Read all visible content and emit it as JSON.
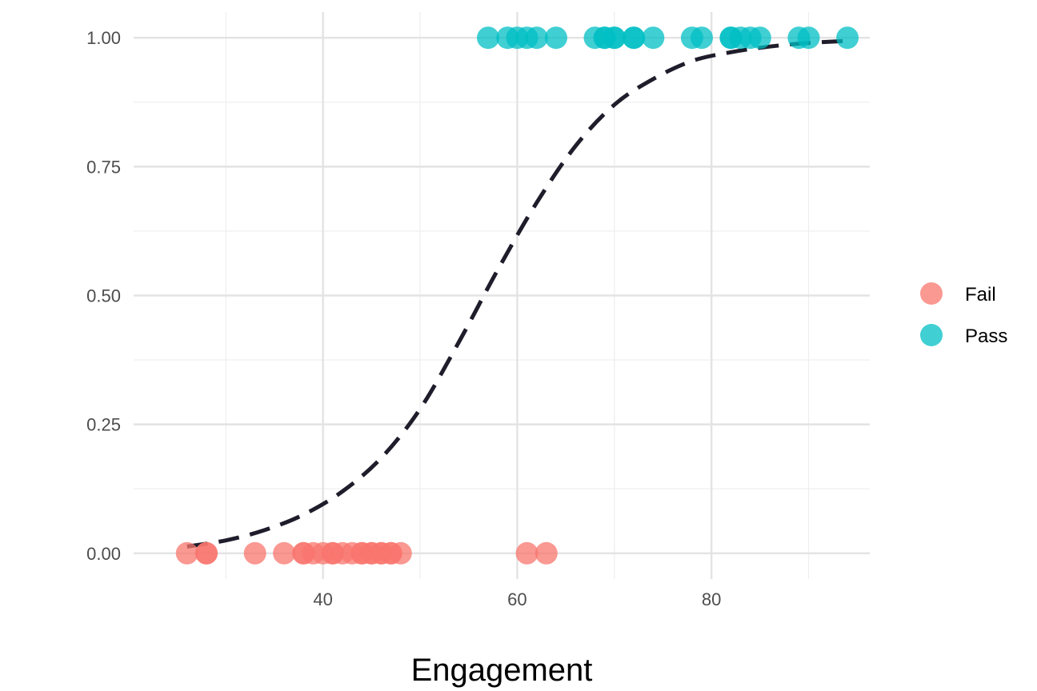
{
  "chart_data": {
    "type": "scatter",
    "title": "",
    "xlabel": "Engagement",
    "ylabel": "",
    "xlim": [
      20.5,
      96.3
    ],
    "ylim": [
      -0.05,
      1.05
    ],
    "x_ticks": [
      40,
      60,
      80
    ],
    "x_tick_labels": [
      "40",
      "60",
      "80"
    ],
    "y_ticks": [
      0,
      0.25,
      0.5,
      0.75,
      1
    ],
    "y_tick_labels": [
      "0.00",
      "0.25",
      "0.50",
      "0.75",
      "1.00"
    ],
    "grid": true,
    "legend_position": "right",
    "series": [
      {
        "name": "Fail",
        "color": "#F8766D",
        "points": [
          {
            "x": 26,
            "y": 0
          },
          {
            "x": 28,
            "y": 0
          },
          {
            "x": 28,
            "y": 0
          },
          {
            "x": 33,
            "y": 0
          },
          {
            "x": 36,
            "y": 0
          },
          {
            "x": 38,
            "y": 0
          },
          {
            "x": 38,
            "y": 0
          },
          {
            "x": 39,
            "y": 0
          },
          {
            "x": 40,
            "y": 0
          },
          {
            "x": 41,
            "y": 0
          },
          {
            "x": 41,
            "y": 0
          },
          {
            "x": 42,
            "y": 0
          },
          {
            "x": 43,
            "y": 0
          },
          {
            "x": 44,
            "y": 0
          },
          {
            "x": 44,
            "y": 0
          },
          {
            "x": 45,
            "y": 0
          },
          {
            "x": 45,
            "y": 0
          },
          {
            "x": 46,
            "y": 0
          },
          {
            "x": 46,
            "y": 0
          },
          {
            "x": 47,
            "y": 0
          },
          {
            "x": 47,
            "y": 0
          },
          {
            "x": 48,
            "y": 0
          },
          {
            "x": 61,
            "y": 0
          },
          {
            "x": 63,
            "y": 0
          }
        ]
      },
      {
        "name": "Pass",
        "color": "#00BFC4",
        "points": [
          {
            "x": 57,
            "y": 1
          },
          {
            "x": 59,
            "y": 1
          },
          {
            "x": 60,
            "y": 1
          },
          {
            "x": 61,
            "y": 1
          },
          {
            "x": 62,
            "y": 1
          },
          {
            "x": 64,
            "y": 1
          },
          {
            "x": 68,
            "y": 1
          },
          {
            "x": 69,
            "y": 1
          },
          {
            "x": 69,
            "y": 1
          },
          {
            "x": 70,
            "y": 1
          },
          {
            "x": 70,
            "y": 1
          },
          {
            "x": 72,
            "y": 1
          },
          {
            "x": 72,
            "y": 1
          },
          {
            "x": 74,
            "y": 1
          },
          {
            "x": 78,
            "y": 1
          },
          {
            "x": 79,
            "y": 1
          },
          {
            "x": 82,
            "y": 1
          },
          {
            "x": 82,
            "y": 1
          },
          {
            "x": 83,
            "y": 1
          },
          {
            "x": 84,
            "y": 1
          },
          {
            "x": 85,
            "y": 1
          },
          {
            "x": 89,
            "y": 1
          },
          {
            "x": 90,
            "y": 1
          },
          {
            "x": 94,
            "y": 1
          }
        ]
      }
    ],
    "fitted_curve": {
      "style": "dashed",
      "color": "#1f1d2b",
      "points": [
        {
          "x": 26,
          "y": 0.013
        },
        {
          "x": 30,
          "y": 0.025
        },
        {
          "x": 34,
          "y": 0.045
        },
        {
          "x": 38,
          "y": 0.075
        },
        {
          "x": 42,
          "y": 0.12
        },
        {
          "x": 46,
          "y": 0.185
        },
        {
          "x": 50,
          "y": 0.28
        },
        {
          "x": 54,
          "y": 0.41
        },
        {
          "x": 58,
          "y": 0.55
        },
        {
          "x": 62,
          "y": 0.68
        },
        {
          "x": 66,
          "y": 0.79
        },
        {
          "x": 70,
          "y": 0.87
        },
        {
          "x": 74,
          "y": 0.92
        },
        {
          "x": 78,
          "y": 0.955
        },
        {
          "x": 82,
          "y": 0.972
        },
        {
          "x": 86,
          "y": 0.983
        },
        {
          "x": 90,
          "y": 0.99
        },
        {
          "x": 94,
          "y": 0.994
        }
      ]
    }
  }
}
